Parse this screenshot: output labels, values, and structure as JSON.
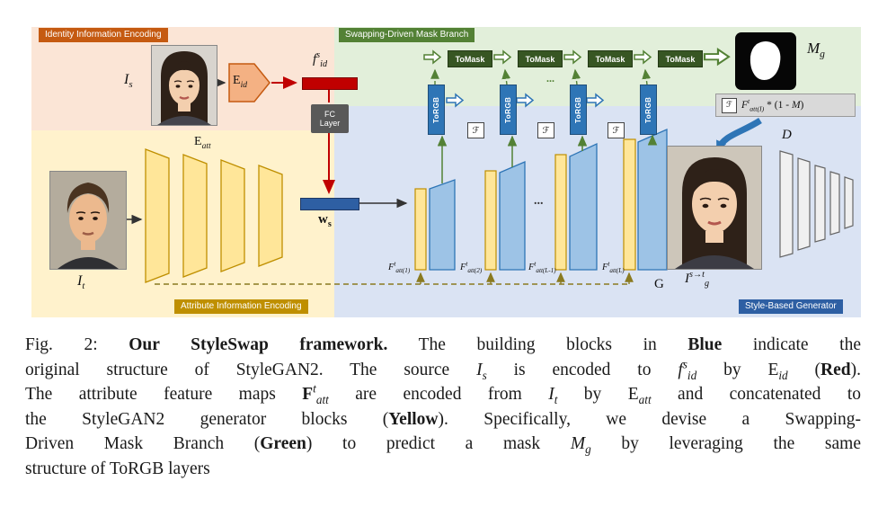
{
  "figure": {
    "regions": {
      "identity": {
        "label": "Identity Information Encoding"
      },
      "mask_branch": {
        "label": "Swapping-Driven Mask Branch"
      },
      "attribute": {
        "label": "Attribute Information Encoding"
      },
      "generator": {
        "label": "Style-Based Generator"
      }
    },
    "nodes": {
      "source_image_label": [
        {
          "t": "I",
          "i": 1
        },
        {
          "t": "s",
          "i": 1,
          "v": "sub"
        }
      ],
      "e_id": [
        {
          "t": "E"
        },
        {
          "t": "id",
          "i": 1,
          "v": "sub"
        }
      ],
      "f_id": [
        {
          "t": "f",
          "i": 1
        },
        {
          "t": "s",
          "i": 1,
          "v": "sup"
        },
        {
          "t": "id",
          "i": 1,
          "v": "sub"
        }
      ],
      "fc": {
        "line1": "FC",
        "line2": "Layer"
      },
      "w_s": [
        {
          "t": "w",
          "b": 1
        },
        {
          "t": "s",
          "b": 1,
          "v": "sub"
        }
      ],
      "target_image_label": [
        {
          "t": "I",
          "i": 1
        },
        {
          "t": "t",
          "i": 1,
          "v": "sub"
        }
      ],
      "e_att": [
        {
          "t": "E"
        },
        {
          "t": "att",
          "i": 1,
          "v": "sub"
        }
      ],
      "torgb": "ToRGB",
      "tomask": "ToMask",
      "script_f": "ℱ",
      "mask_label": [
        {
          "t": "M",
          "i": 1
        },
        {
          "t": "g",
          "i": 1,
          "v": "sub"
        }
      ],
      "formula": [
        {
          "t": "F",
          "i": 1
        },
        {
          "t": "t",
          "i": 1,
          "v": "sup"
        },
        {
          "t": "att(I)",
          "i": 1,
          "v": "sub"
        },
        {
          "t": " * (1 - "
        },
        {
          "t": "M",
          "i": 1
        },
        {
          "t": ")"
        }
      ],
      "fmap1": [
        {
          "t": "F",
          "i": 1
        },
        {
          "t": "t",
          "i": 1,
          "v": "sup"
        },
        {
          "t": "att(1)",
          "i": 1,
          "v": "sub"
        }
      ],
      "fmap2": [
        {
          "t": "F",
          "i": 1
        },
        {
          "t": "t",
          "i": 1,
          "v": "sup"
        },
        {
          "t": "att(2)",
          "i": 1,
          "v": "sub"
        }
      ],
      "fmap3": [
        {
          "t": "F",
          "i": 1
        },
        {
          "t": "t",
          "i": 1,
          "v": "sup"
        },
        {
          "t": "att(L-1)",
          "i": 1,
          "v": "sub"
        }
      ],
      "fmap4": [
        {
          "t": "F",
          "i": 1
        },
        {
          "t": "t",
          "i": 1,
          "v": "sup"
        },
        {
          "t": "att(L)",
          "i": 1,
          "v": "sub"
        }
      ],
      "discriminator": "D",
      "generator_g": "G",
      "output_image_label": [
        {
          "t": "I",
          "i": 1
        },
        {
          "t": "s→t",
          "i": 1,
          "v": "sup"
        },
        {
          "t": "g",
          "i": 1,
          "v": "sub"
        }
      ],
      "ellipsis": "..."
    },
    "caption": {
      "figure_number": "Fig. 2:",
      "lines": [
        [
          {
            "t": "Fig. 2: "
          },
          {
            "t": "Our StyleSwap framework.",
            "b": 1
          },
          {
            "t": " The building blocks in "
          },
          {
            "t": "Blue",
            "b": 1
          },
          {
            "t": " indicate the"
          }
        ],
        [
          {
            "t": "original structure of StyleGAN2. The source "
          },
          {
            "t": "I",
            "i": 1
          },
          {
            "t": "s",
            "i": 1,
            "v": "sub"
          },
          {
            "t": " is encoded to "
          },
          {
            "t": "f",
            "i": 1
          },
          {
            "t": "s",
            "i": 1,
            "v": "sup"
          },
          {
            "t": "id",
            "i": 1,
            "v": "sub"
          },
          {
            "t": " by E"
          },
          {
            "t": "id",
            "i": 1,
            "v": "sub"
          },
          {
            "t": " ("
          },
          {
            "t": "Red",
            "b": 1
          },
          {
            "t": ")."
          }
        ],
        [
          {
            "t": "The attribute feature maps "
          },
          {
            "t": "F",
            "b": 1
          },
          {
            "t": "t",
            "i": 1,
            "v": "sup"
          },
          {
            "t": "att",
            "i": 1,
            "v": "sub"
          },
          {
            "t": " are encoded from "
          },
          {
            "t": "I",
            "i": 1
          },
          {
            "t": "t",
            "i": 1,
            "v": "sub"
          },
          {
            "t": " by E"
          },
          {
            "t": "att",
            "i": 1,
            "v": "sub"
          },
          {
            "t": " and concatenated to"
          }
        ],
        [
          {
            "t": "the StyleGAN2 generator blocks ("
          },
          {
            "t": "Yellow",
            "b": 1
          },
          {
            "t": "). Specifically, we devise a Swapping-"
          }
        ],
        [
          {
            "t": "Driven Mask Branch ("
          },
          {
            "t": "Green",
            "b": 1
          },
          {
            "t": ") to predict a mask "
          },
          {
            "t": "M",
            "i": 1
          },
          {
            "t": "g",
            "i": 1,
            "v": "sub"
          },
          {
            "t": " by leveraging the same"
          }
        ],
        [
          {
            "t": "structure of ToRGB layers"
          }
        ]
      ]
    },
    "colors": {
      "red_accent": "#c00000",
      "blue_accent": "#2e75b6",
      "green_accent": "#538135",
      "yellow_accent": "#bf8f00",
      "identity_bg": "#fbe5d6",
      "mask_branch_bg": "#e2efda",
      "attribute_bg": "#fff2cc",
      "generator_bg": "#dae3f3"
    }
  }
}
